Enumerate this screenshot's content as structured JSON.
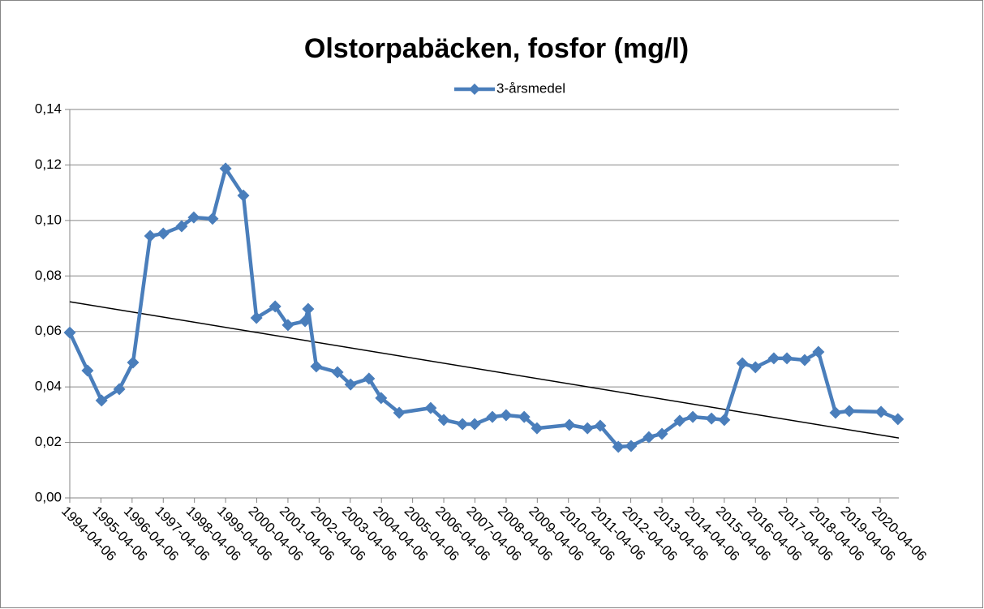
{
  "chart_data": {
    "type": "line",
    "title": "Olstorpabäcken, fosfor (mg/l)",
    "series": [
      {
        "name": "3-årsmedel",
        "color": "#4a7ebb",
        "x": [
          1994.0,
          1994.57,
          1995.02,
          1995.59,
          1996.03,
          1996.58,
          1997.0,
          1997.59,
          1997.98,
          1998.58,
          1999.0,
          1999.57,
          1999.99,
          2000.59,
          2001.0,
          2001.55,
          2001.65,
          2001.91,
          2002.59,
          2003.01,
          2003.6,
          2003.99,
          2004.57,
          2005.58,
          2006.0,
          2006.6,
          2006.99,
          2007.56,
          2008.0,
          2008.58,
          2008.99,
          2010.03,
          2010.61,
          2011.02,
          2011.6,
          2012.01,
          2012.58,
          2013.0,
          2013.57,
          2013.99,
          2014.59,
          2015.0,
          2015.58,
          2016.0,
          2016.59,
          2017.01,
          2017.58,
          2018.02,
          2018.57,
          2019.01,
          2020.03,
          2020.57
        ],
        "values": [
          0.0596,
          0.0459,
          0.0351,
          0.0392,
          0.0488,
          0.0944,
          0.0953,
          0.0979,
          0.1011,
          0.1006,
          0.1187,
          0.109,
          0.0649,
          0.069,
          0.0623,
          0.0637,
          0.0681,
          0.0474,
          0.0453,
          0.0409,
          0.043,
          0.036,
          0.0307,
          0.0324,
          0.0281,
          0.0266,
          0.0266,
          0.0292,
          0.0298,
          0.0292,
          0.0251,
          0.0263,
          0.0251,
          0.026,
          0.0184,
          0.0187,
          0.0219,
          0.0231,
          0.0278,
          0.0292,
          0.0286,
          0.0281,
          0.0485,
          0.0471,
          0.0503,
          0.0503,
          0.0497,
          0.0526,
          0.0307,
          0.0313,
          0.031,
          0.0284
        ]
      }
    ],
    "trendline": {
      "color": "#000000",
      "x": [
        1994.0,
        2020.6
      ],
      "values": [
        0.0707,
        0.0216
      ]
    },
    "xlim": [
      1994.0,
      2020.6
    ],
    "xticks": [
      {
        "value": 1994,
        "label": "1994-04-06"
      },
      {
        "value": 1995,
        "label": "1995-04-06"
      },
      {
        "value": 1996,
        "label": "1996-04-06"
      },
      {
        "value": 1997,
        "label": "1997-04-06"
      },
      {
        "value": 1998,
        "label": "1998-04-06"
      },
      {
        "value": 1999,
        "label": "1999-04-06"
      },
      {
        "value": 2000,
        "label": "2000-04-06"
      },
      {
        "value": 2001,
        "label": "2001-04-06"
      },
      {
        "value": 2002,
        "label": "2002-04-06"
      },
      {
        "value": 2003,
        "label": "2003-04-06"
      },
      {
        "value": 2004,
        "label": "2004-04-06"
      },
      {
        "value": 2005,
        "label": "2005-04-06"
      },
      {
        "value": 2006,
        "label": "2006-04-06"
      },
      {
        "value": 2007,
        "label": "2007-04-06"
      },
      {
        "value": 2008,
        "label": "2008-04-06"
      },
      {
        "value": 2009,
        "label": "2009-04-06"
      },
      {
        "value": 2010,
        "label": "2010-04-06"
      },
      {
        "value": 2011,
        "label": "2011-04-06"
      },
      {
        "value": 2012,
        "label": "2012-04-06"
      },
      {
        "value": 2013,
        "label": "2013-04-06"
      },
      {
        "value": 2014,
        "label": "2014-04-06"
      },
      {
        "value": 2015,
        "label": "2015-04-06"
      },
      {
        "value": 2016,
        "label": "2016-04-06"
      },
      {
        "value": 2017,
        "label": "2017-04-06"
      },
      {
        "value": 2018,
        "label": "2018-04-06"
      },
      {
        "value": 2019,
        "label": "2019-04-06"
      },
      {
        "value": 2020,
        "label": "2020-04-06"
      }
    ],
    "ylim": [
      0,
      0.14
    ],
    "yticks": [
      {
        "value": 0,
        "label": "0,00"
      },
      {
        "value": 0.02,
        "label": "0,02"
      },
      {
        "value": 0.04,
        "label": "0,04"
      },
      {
        "value": 0.06,
        "label": "0,06"
      },
      {
        "value": 0.08,
        "label": "0,08"
      },
      {
        "value": 0.1,
        "label": "0,10"
      },
      {
        "value": 0.12,
        "label": "0,12"
      },
      {
        "value": 0.14,
        "label": "0,14"
      }
    ],
    "grid": true,
    "legend": "top"
  }
}
